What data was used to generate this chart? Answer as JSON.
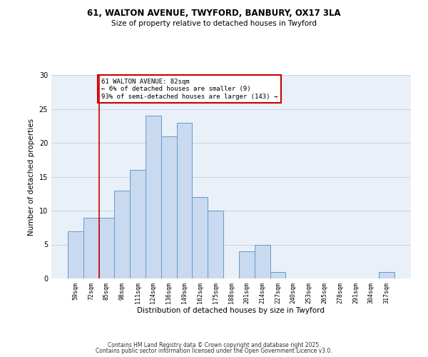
{
  "title1": "61, WALTON AVENUE, TWYFORD, BANBURY, OX17 3LA",
  "title2": "Size of property relative to detached houses in Twyford",
  "xlabel": "Distribution of detached houses by size in Twyford",
  "ylabel": "Number of detached properties",
  "bar_labels": [
    "59sqm",
    "72sqm",
    "85sqm",
    "98sqm",
    "111sqm",
    "124sqm",
    "136sqm",
    "149sqm",
    "162sqm",
    "175sqm",
    "188sqm",
    "201sqm",
    "214sqm",
    "227sqm",
    "240sqm",
    "253sqm",
    "265sqm",
    "278sqm",
    "291sqm",
    "304sqm",
    "317sqm"
  ],
  "bar_values": [
    7,
    9,
    9,
    13,
    16,
    24,
    21,
    23,
    12,
    10,
    0,
    4,
    5,
    1,
    0,
    0,
    0,
    0,
    0,
    0,
    1
  ],
  "bar_color": "#c9d9ef",
  "bar_edge_color": "#6699cc",
  "vline_color": "#cc0000",
  "vline_x_index": 2,
  "annotation_text": "61 WALTON AVENUE: 82sqm\n← 6% of detached houses are smaller (9)\n93% of semi-detached houses are larger (143) →",
  "annotation_box_edge_color": "#cc0000",
  "ylim": [
    0,
    30
  ],
  "yticks": [
    0,
    5,
    10,
    15,
    20,
    25,
    30
  ],
  "footer1": "Contains HM Land Registry data © Crown copyright and database right 2025.",
  "footer2": "Contains public sector information licensed under the Open Government Licence v3.0.",
  "bg_color": "#ffffff",
  "plot_bg_color": "#eaf0f8",
  "grid_color": "#c8d4e4"
}
